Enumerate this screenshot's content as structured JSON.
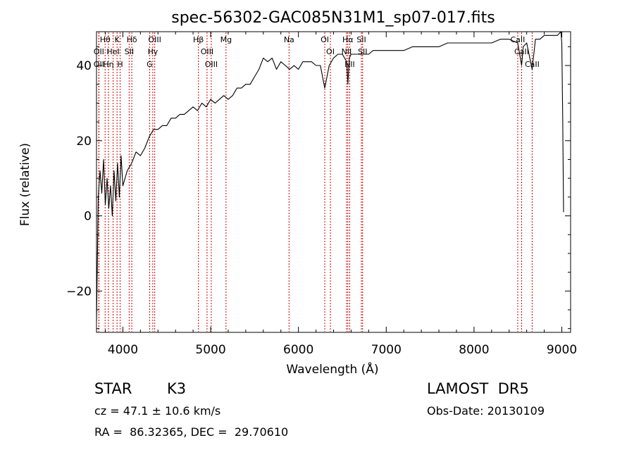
{
  "chart_data": {
    "type": "line",
    "title": "spec-56302-GAC085N31M1_sp07-017.fits",
    "xlabel": "Wavelength (Å)",
    "ylabel": "Flux (relative)",
    "xlim": [
      3700,
      9100
    ],
    "ylim": [
      -31,
      49
    ],
    "xticks": [
      4000,
      5000,
      6000,
      7000,
      8000,
      9000
    ],
    "yticks": [
      -20,
      0,
      20,
      40
    ],
    "line_color": "#000000",
    "marker_color": "#cc0000",
    "spectrum": {
      "x": [
        3700,
        3720,
        3740,
        3760,
        3780,
        3800,
        3820,
        3840,
        3860,
        3880,
        3900,
        3920,
        3940,
        3960,
        3980,
        4000,
        4050,
        4100,
        4150,
        4200,
        4250,
        4300,
        4350,
        4400,
        4450,
        4500,
        4550,
        4600,
        4650,
        4700,
        4750,
        4800,
        4850,
        4900,
        4950,
        5000,
        5050,
        5100,
        5150,
        5200,
        5250,
        5300,
        5350,
        5400,
        5450,
        5500,
        5550,
        5600,
        5650,
        5700,
        5750,
        5800,
        5850,
        5900,
        5950,
        6000,
        6050,
        6100,
        6150,
        6200,
        6250,
        6300,
        6350,
        6400,
        6450,
        6500,
        6550,
        6563,
        6580,
        6600,
        6650,
        6700,
        6750,
        6800,
        6850,
        6900,
        7000,
        7100,
        7200,
        7300,
        7400,
        7500,
        7600,
        7700,
        7800,
        7900,
        8000,
        8100,
        8200,
        8300,
        8400,
        8498,
        8520,
        8542,
        8560,
        8600,
        8662,
        8700,
        8750,
        8800,
        8850,
        8900,
        8950,
        8990,
        9000,
        9010,
        9020
      ],
      "y": [
        -28,
        5,
        12,
        6,
        15,
        3,
        10,
        2,
        8,
        0,
        12,
        4,
        14,
        5,
        16,
        8,
        12,
        14,
        17,
        16,
        18,
        21,
        23,
        23,
        24,
        24,
        26,
        26,
        27,
        27,
        28,
        29,
        28,
        30,
        29,
        31,
        30,
        31,
        32,
        31,
        32,
        34,
        34,
        35,
        35,
        37,
        39,
        42,
        41,
        42,
        39,
        41,
        40,
        39,
        40,
        39,
        41,
        41,
        41,
        40,
        40,
        34,
        40,
        42,
        43,
        43,
        41,
        35,
        42,
        43,
        43,
        43,
        43,
        43,
        44,
        44,
        44,
        44,
        44,
        45,
        45,
        45,
        45,
        46,
        46,
        46,
        46,
        46,
        46,
        47,
        47,
        46,
        43,
        40,
        45,
        46,
        39,
        47,
        47,
        48,
        48,
        48,
        48,
        49,
        46,
        26,
        1
      ]
    },
    "line_markers": [
      {
        "label": "Hθ",
        "x": 3798
      },
      {
        "label": "OII",
        "x": 3727
      },
      {
        "label": "OII",
        "x": 3727
      },
      {
        "label": "Hη",
        "x": 3836
      },
      {
        "label": "K",
        "x": 3934
      },
      {
        "label": "HeI",
        "x": 3889
      },
      {
        "label": "H",
        "x": 3969
      },
      {
        "label": "Hδ",
        "x": 4102
      },
      {
        "label": "SII",
        "x": 4072
      },
      {
        "label": "OIII",
        "x": 4363
      },
      {
        "label": "Hγ",
        "x": 4341
      },
      {
        "label": "G",
        "x": 4305
      },
      {
        "label": "Hβ",
        "x": 4861
      },
      {
        "label": "OIII",
        "x": 4959
      },
      {
        "label": "OIII",
        "x": 5007
      },
      {
        "label": "Mg",
        "x": 5175
      },
      {
        "label": "Na",
        "x": 5893
      },
      {
        "label": "OI",
        "x": 6300
      },
      {
        "label": "OI",
        "x": 6364
      },
      {
        "label": "Hα",
        "x": 6563
      },
      {
        "label": "NII",
        "x": 6548
      },
      {
        "label": "NII",
        "x": 6584
      },
      {
        "label": "SII",
        "x": 6717
      },
      {
        "label": "SII",
        "x": 6731
      },
      {
        "label": "CaII",
        "x": 8498
      },
      {
        "label": "CaII",
        "x": 8542
      },
      {
        "label": "CaII",
        "x": 8662
      }
    ]
  },
  "info": {
    "object_class": "STAR",
    "subclass": "K3",
    "survey": "LAMOST  DR5",
    "redshift": "cz = 47.1 ± 10.6 km/s",
    "obs_date": "Obs-Date: 20130109",
    "coords": "RA =  86.32365, DEC =  29.70610"
  }
}
